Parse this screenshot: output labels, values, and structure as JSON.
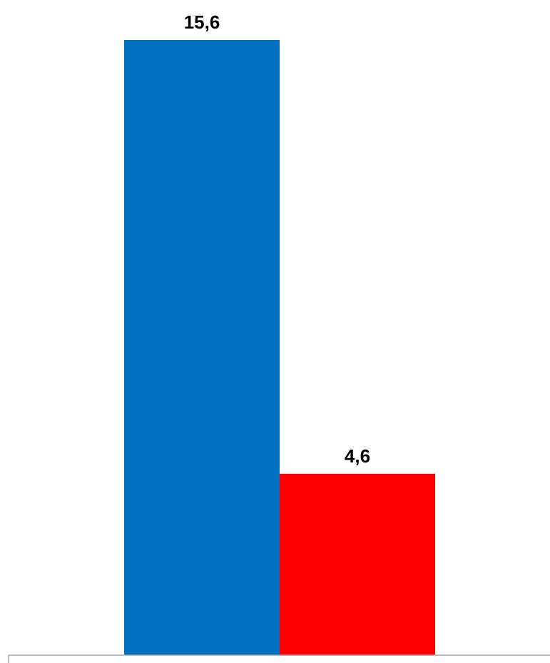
{
  "chart_data": {
    "type": "bar",
    "categories": [
      "",
      ""
    ],
    "values": [
      15.6,
      4.6
    ],
    "data_labels": [
      "15,6",
      "4,6"
    ],
    "colors": [
      "#0070C0",
      "#FF0000"
    ],
    "ylim": [
      0,
      15.6
    ],
    "axis_color": "#A6A6A6",
    "grid": false,
    "legend": "none"
  }
}
